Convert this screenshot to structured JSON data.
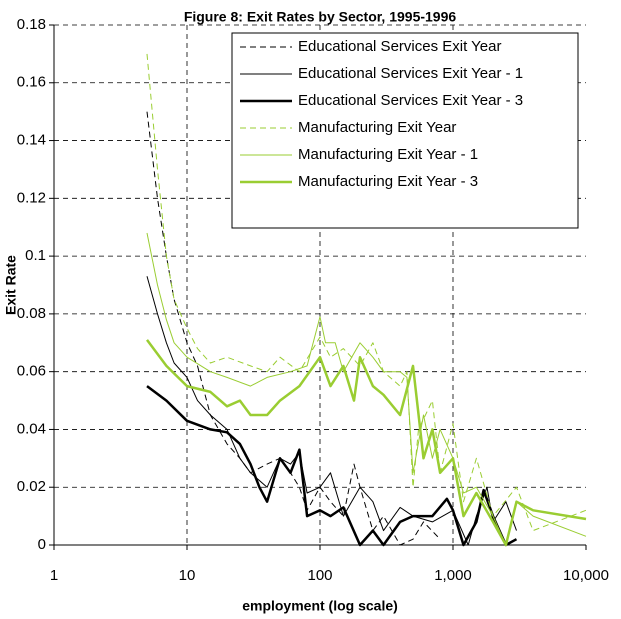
{
  "chart_data": {
    "type": "line",
    "title": "Figure 8: Exit Rates by Sector, 1995-1996",
    "xlabel": "employment (log scale)",
    "ylabel": "Exit Rate",
    "xscale": "log",
    "xlim": [
      1,
      10000
    ],
    "xticks": [
      1,
      10,
      100,
      {
        "value": 1000,
        "label": "1,000"
      },
      {
        "value": 10000,
        "label": "10,000"
      }
    ],
    "ylim": [
      0,
      0.18
    ],
    "yticks": [
      0,
      0.02,
      0.04,
      0.06,
      0.08,
      0.1,
      0.12,
      0.14,
      0.16,
      0.18
    ],
    "grid": true,
    "legend": "upper right",
    "series": [
      {
        "name": "Educational Services Exit Year",
        "color": "#000000",
        "width": 1,
        "dashed": true,
        "x": [
          5,
          6,
          7,
          8,
          10,
          12,
          15,
          20,
          25,
          30,
          40,
          50,
          60,
          70,
          80,
          100,
          120,
          150,
          180,
          200,
          250,
          300,
          400,
          500,
          600,
          800
        ],
        "values": [
          0.15,
          0.12,
          0.1,
          0.085,
          0.07,
          0.062,
          0.045,
          0.035,
          0.03,
          0.025,
          0.028,
          0.03,
          0.025,
          0.02,
          0.012,
          0.02,
          0.015,
          0.01,
          0.028,
          0.02,
          0.005,
          0.01,
          0.0,
          0.002,
          0.008,
          0.002
        ]
      },
      {
        "name": "Educational Services Exit Year - 1",
        "color": "#000000",
        "width": 1,
        "dashed": false,
        "x": [
          5,
          6,
          7,
          8,
          10,
          12,
          15,
          20,
          25,
          30,
          40,
          50,
          60,
          70,
          80,
          100,
          120,
          150,
          200,
          250,
          300,
          400,
          500,
          700,
          1000,
          1300,
          1500,
          1800,
          2000,
          2500,
          3000
        ],
        "values": [
          0.093,
          0.08,
          0.07,
          0.063,
          0.058,
          0.05,
          0.045,
          0.04,
          0.03,
          0.025,
          0.02,
          0.03,
          0.028,
          0.032,
          0.018,
          0.02,
          0.025,
          0.01,
          0.02,
          0.015,
          0.005,
          0.013,
          0.01,
          0.008,
          0.012,
          0.0,
          0.01,
          0.02,
          0.008,
          0.015,
          0.005
        ]
      },
      {
        "name": "Educational Services Exit Year - 3",
        "color": "#000000",
        "width": 2.5,
        "dashed": false,
        "x": [
          5,
          7,
          10,
          15,
          20,
          25,
          30,
          35,
          40,
          50,
          60,
          70,
          80,
          100,
          120,
          150,
          200,
          250,
          300,
          400,
          500,
          700,
          900,
          1000,
          1200,
          1500,
          1700,
          2000,
          2500,
          3000
        ],
        "values": [
          0.055,
          0.05,
          0.043,
          0.04,
          0.039,
          0.035,
          0.028,
          0.02,
          0.015,
          0.03,
          0.025,
          0.033,
          0.01,
          0.012,
          0.01,
          0.013,
          0.0,
          0.005,
          0.0,
          0.008,
          0.01,
          0.01,
          0.016,
          0.012,
          0.0,
          0.008,
          0.019,
          0.01,
          0.0,
          0.002
        ]
      },
      {
        "name": "Manufacturing Exit Year",
        "color": "#9acd32",
        "width": 1,
        "dashed": true,
        "x": [
          5,
          6,
          7,
          8,
          10,
          12,
          15,
          20,
          30,
          40,
          50,
          70,
          100,
          120,
          150,
          200,
          250,
          300,
          400,
          450,
          500,
          550,
          700,
          800,
          1000,
          1200,
          1500,
          2000,
          3000,
          4000,
          10000
        ],
        "values": [
          0.17,
          0.13,
          0.1,
          0.085,
          0.075,
          0.068,
          0.063,
          0.065,
          0.062,
          0.06,
          0.065,
          0.06,
          0.072,
          0.065,
          0.068,
          0.062,
          0.07,
          0.06,
          0.055,
          0.06,
          0.02,
          0.04,
          0.05,
          0.025,
          0.042,
          0.015,
          0.03,
          0.01,
          0.02,
          0.005,
          0.012
        ]
      },
      {
        "name": "Manufacturing Exit Year - 1",
        "color": "#9acd32",
        "width": 1,
        "dashed": false,
        "x": [
          5,
          6,
          7,
          8,
          10,
          15,
          20,
          30,
          40,
          60,
          80,
          100,
          110,
          130,
          150,
          200,
          250,
          300,
          400,
          450,
          500,
          600,
          700,
          800,
          1000,
          1200,
          1500,
          2000,
          2500,
          3000,
          4000,
          10000
        ],
        "values": [
          0.108,
          0.09,
          0.078,
          0.07,
          0.065,
          0.06,
          0.058,
          0.055,
          0.058,
          0.06,
          0.062,
          0.079,
          0.07,
          0.07,
          0.06,
          0.07,
          0.065,
          0.06,
          0.06,
          0.058,
          0.025,
          0.045,
          0.03,
          0.04,
          0.03,
          0.018,
          0.02,
          0.01,
          0.0,
          0.015,
          0.01,
          0.003
        ]
      },
      {
        "name": "Manufacturing Exit Year - 3",
        "color": "#9acd32",
        "width": 2.5,
        "dashed": false,
        "x": [
          5,
          7,
          10,
          15,
          20,
          25,
          30,
          40,
          50,
          70,
          100,
          120,
          150,
          180,
          200,
          250,
          300,
          400,
          500,
          600,
          700,
          800,
          1000,
          1200,
          1500,
          2000,
          2500,
          3000,
          4000,
          10000
        ],
        "values": [
          0.071,
          0.062,
          0.055,
          0.053,
          0.048,
          0.05,
          0.045,
          0.045,
          0.05,
          0.055,
          0.065,
          0.055,
          0.062,
          0.05,
          0.065,
          0.055,
          0.052,
          0.045,
          0.062,
          0.03,
          0.04,
          0.025,
          0.03,
          0.01,
          0.018,
          0.008,
          0.0,
          0.015,
          0.012,
          0.009
        ]
      }
    ]
  }
}
